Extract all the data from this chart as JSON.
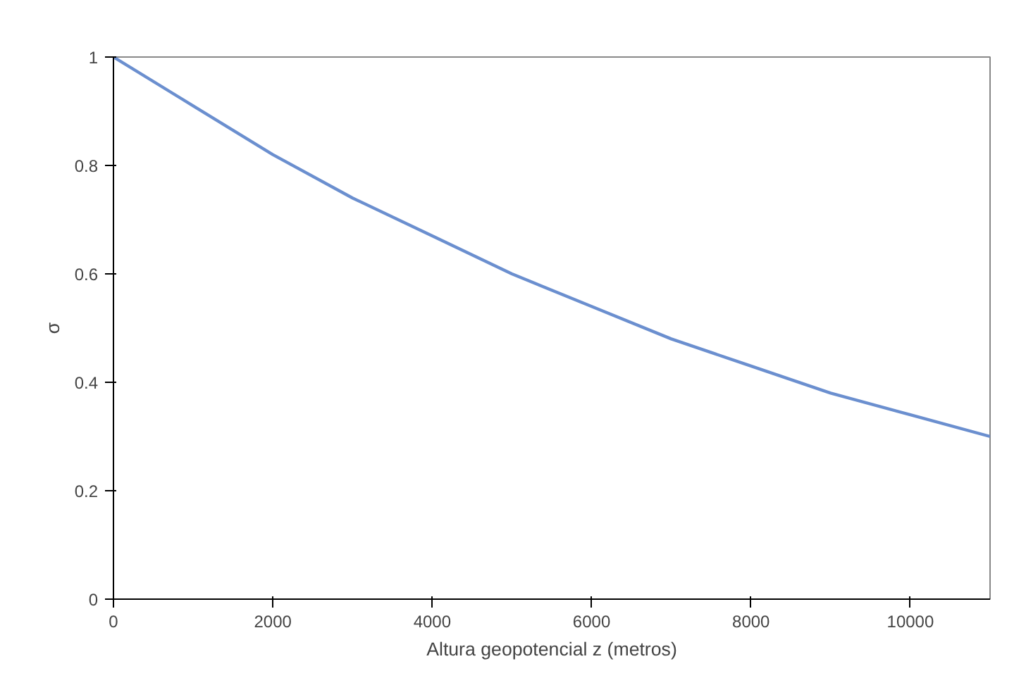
{
  "chart_data": {
    "type": "line",
    "xlabel": "Altura geopotencial z (metros)",
    "ylabel": "σ",
    "x": [
      0,
      1000,
      2000,
      3000,
      4000,
      5000,
      6000,
      7000,
      8000,
      9000,
      10000,
      11000
    ],
    "series": [
      {
        "color": "#6b8fcf",
        "values": [
          1,
          0.91,
          0.82,
          0.74,
          0.67,
          0.6,
          0.54,
          0.48,
          0.43,
          0.38,
          0.34,
          0.3
        ]
      }
    ],
    "xlim": [
      0,
      11000
    ],
    "ylim": [
      0,
      1
    ],
    "xticks": [
      0,
      2000,
      4000,
      6000,
      8000,
      10000
    ],
    "yticks": [
      0,
      0.2,
      0.4,
      0.6,
      0.8,
      1
    ],
    "grid": false,
    "marker": "none",
    "line_style": "solid"
  }
}
